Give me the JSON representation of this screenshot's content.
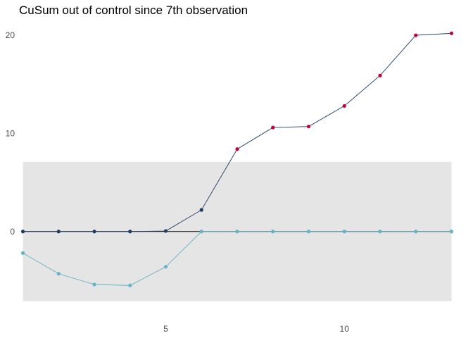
{
  "chart_data": {
    "type": "line",
    "title": "CuSum out of control since 7th observation",
    "xlabel": "",
    "ylabel": "",
    "x": [
      1,
      2,
      3,
      4,
      5,
      6,
      7,
      8,
      9,
      10,
      11,
      12,
      13
    ],
    "xlim": [
      0.95,
      13.05
    ],
    "ylim": [
      -8.2,
      21.3
    ],
    "x_ticks": [
      5,
      10
    ],
    "y_ticks": [
      0,
      10,
      20
    ],
    "grid": false,
    "control_band": {
      "lower": -7.1,
      "upper": 7.1,
      "color": "#e5e5e5"
    },
    "center_line": 0,
    "series": [
      {
        "role": "upper",
        "values": [
          0,
          0,
          0,
          0,
          0.05,
          2.2,
          8.4,
          10.6,
          10.7,
          12.8,
          15.9,
          20.0,
          20.2
        ],
        "line_color": "#1f3b61",
        "point_color": "#1f3b61",
        "out_of_control_color": "#c7003a"
      },
      {
        "role": "lower",
        "values": [
          -2.2,
          -4.3,
          -5.4,
          -5.5,
          -3.6,
          0,
          0,
          0,
          0,
          0,
          0,
          0,
          0
        ],
        "line_color": "#67b3c3",
        "point_color": "#67b3c3"
      }
    ]
  }
}
